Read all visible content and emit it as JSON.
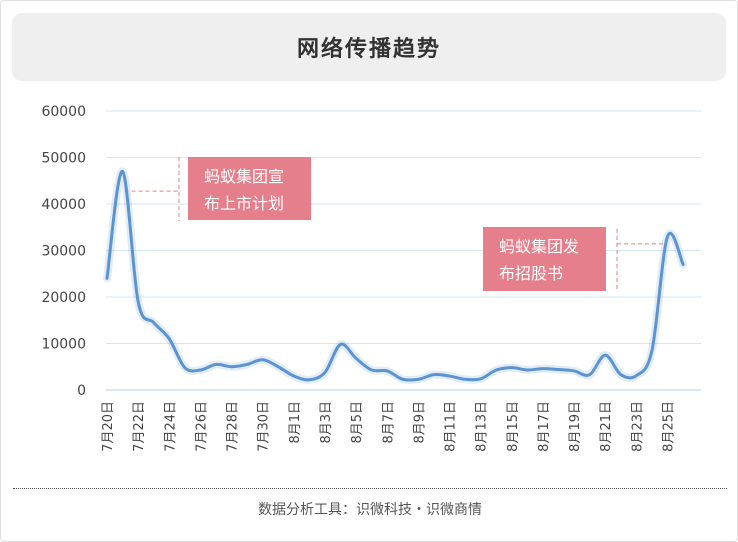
{
  "header": {
    "title": "网络传播趋势"
  },
  "footer": {
    "source": "数据分析工具：识微科技・识微商情"
  },
  "theme": {
    "line_color": "#5b93d3",
    "grid_color": "#d6e6f4",
    "annotation_bg": "#e57f8c",
    "annotation_text": "#ffffff",
    "guide_color": "#e57f8c",
    "axis_text": "#444444"
  },
  "chart_data": {
    "type": "line",
    "title": "网络传播趋势",
    "xlabel": "",
    "ylabel": "",
    "ylim": [
      0,
      60000
    ],
    "yticks": [
      0,
      10000,
      20000,
      30000,
      40000,
      50000,
      60000
    ],
    "grid": true,
    "x_tick_labels": [
      "7月20日",
      "7月22日",
      "7月24日",
      "7月26日",
      "7月28日",
      "7月30日",
      "8月1日",
      "8月3日",
      "8月5日",
      "8月7日",
      "8月9日",
      "8月11日",
      "8月13日",
      "8月15日",
      "8月17日",
      "8月19日",
      "8月21日",
      "8月23日",
      "8月25日"
    ],
    "x": [
      "7月20日",
      "7月21日",
      "7月22日",
      "7月23日",
      "7月24日",
      "7月25日",
      "7月26日",
      "7月27日",
      "7月28日",
      "7月29日",
      "7月30日",
      "7月31日",
      "8月1日",
      "8月2日",
      "8月3日",
      "8月4日",
      "8月5日",
      "8月6日",
      "8月7日",
      "8月8日",
      "8月9日",
      "8月10日",
      "8月11日",
      "8月12日",
      "8月13日",
      "8月14日",
      "8月15日",
      "8月16日",
      "8月17日",
      "8月18日",
      "8月19日",
      "8月20日",
      "8月21日",
      "8月22日",
      "8月23日",
      "8月24日",
      "8月25日",
      "8月26日"
    ],
    "series": [
      {
        "values": [
          24000,
          47000,
          19000,
          14500,
          11000,
          4800,
          4300,
          5500,
          5000,
          5500,
          6500,
          5000,
          3000,
          2200,
          3800,
          9800,
          6800,
          4300,
          4100,
          2300,
          2300,
          3300,
          3000,
          2300,
          2400,
          4300,
          4800,
          4300,
          4600,
          4400,
          4100,
          3300,
          7500,
          3300,
          3100,
          8500,
          33000,
          27000
        ]
      }
    ],
    "annotations": [
      {
        "lines": [
          "蚂蚁集团宣",
          "布上市计划"
        ],
        "at": "7月21日",
        "value": 47500
      },
      {
        "lines": [
          "蚂蚁集团发",
          "布招股书"
        ],
        "at": "8月25日",
        "value": 32500
      }
    ]
  }
}
